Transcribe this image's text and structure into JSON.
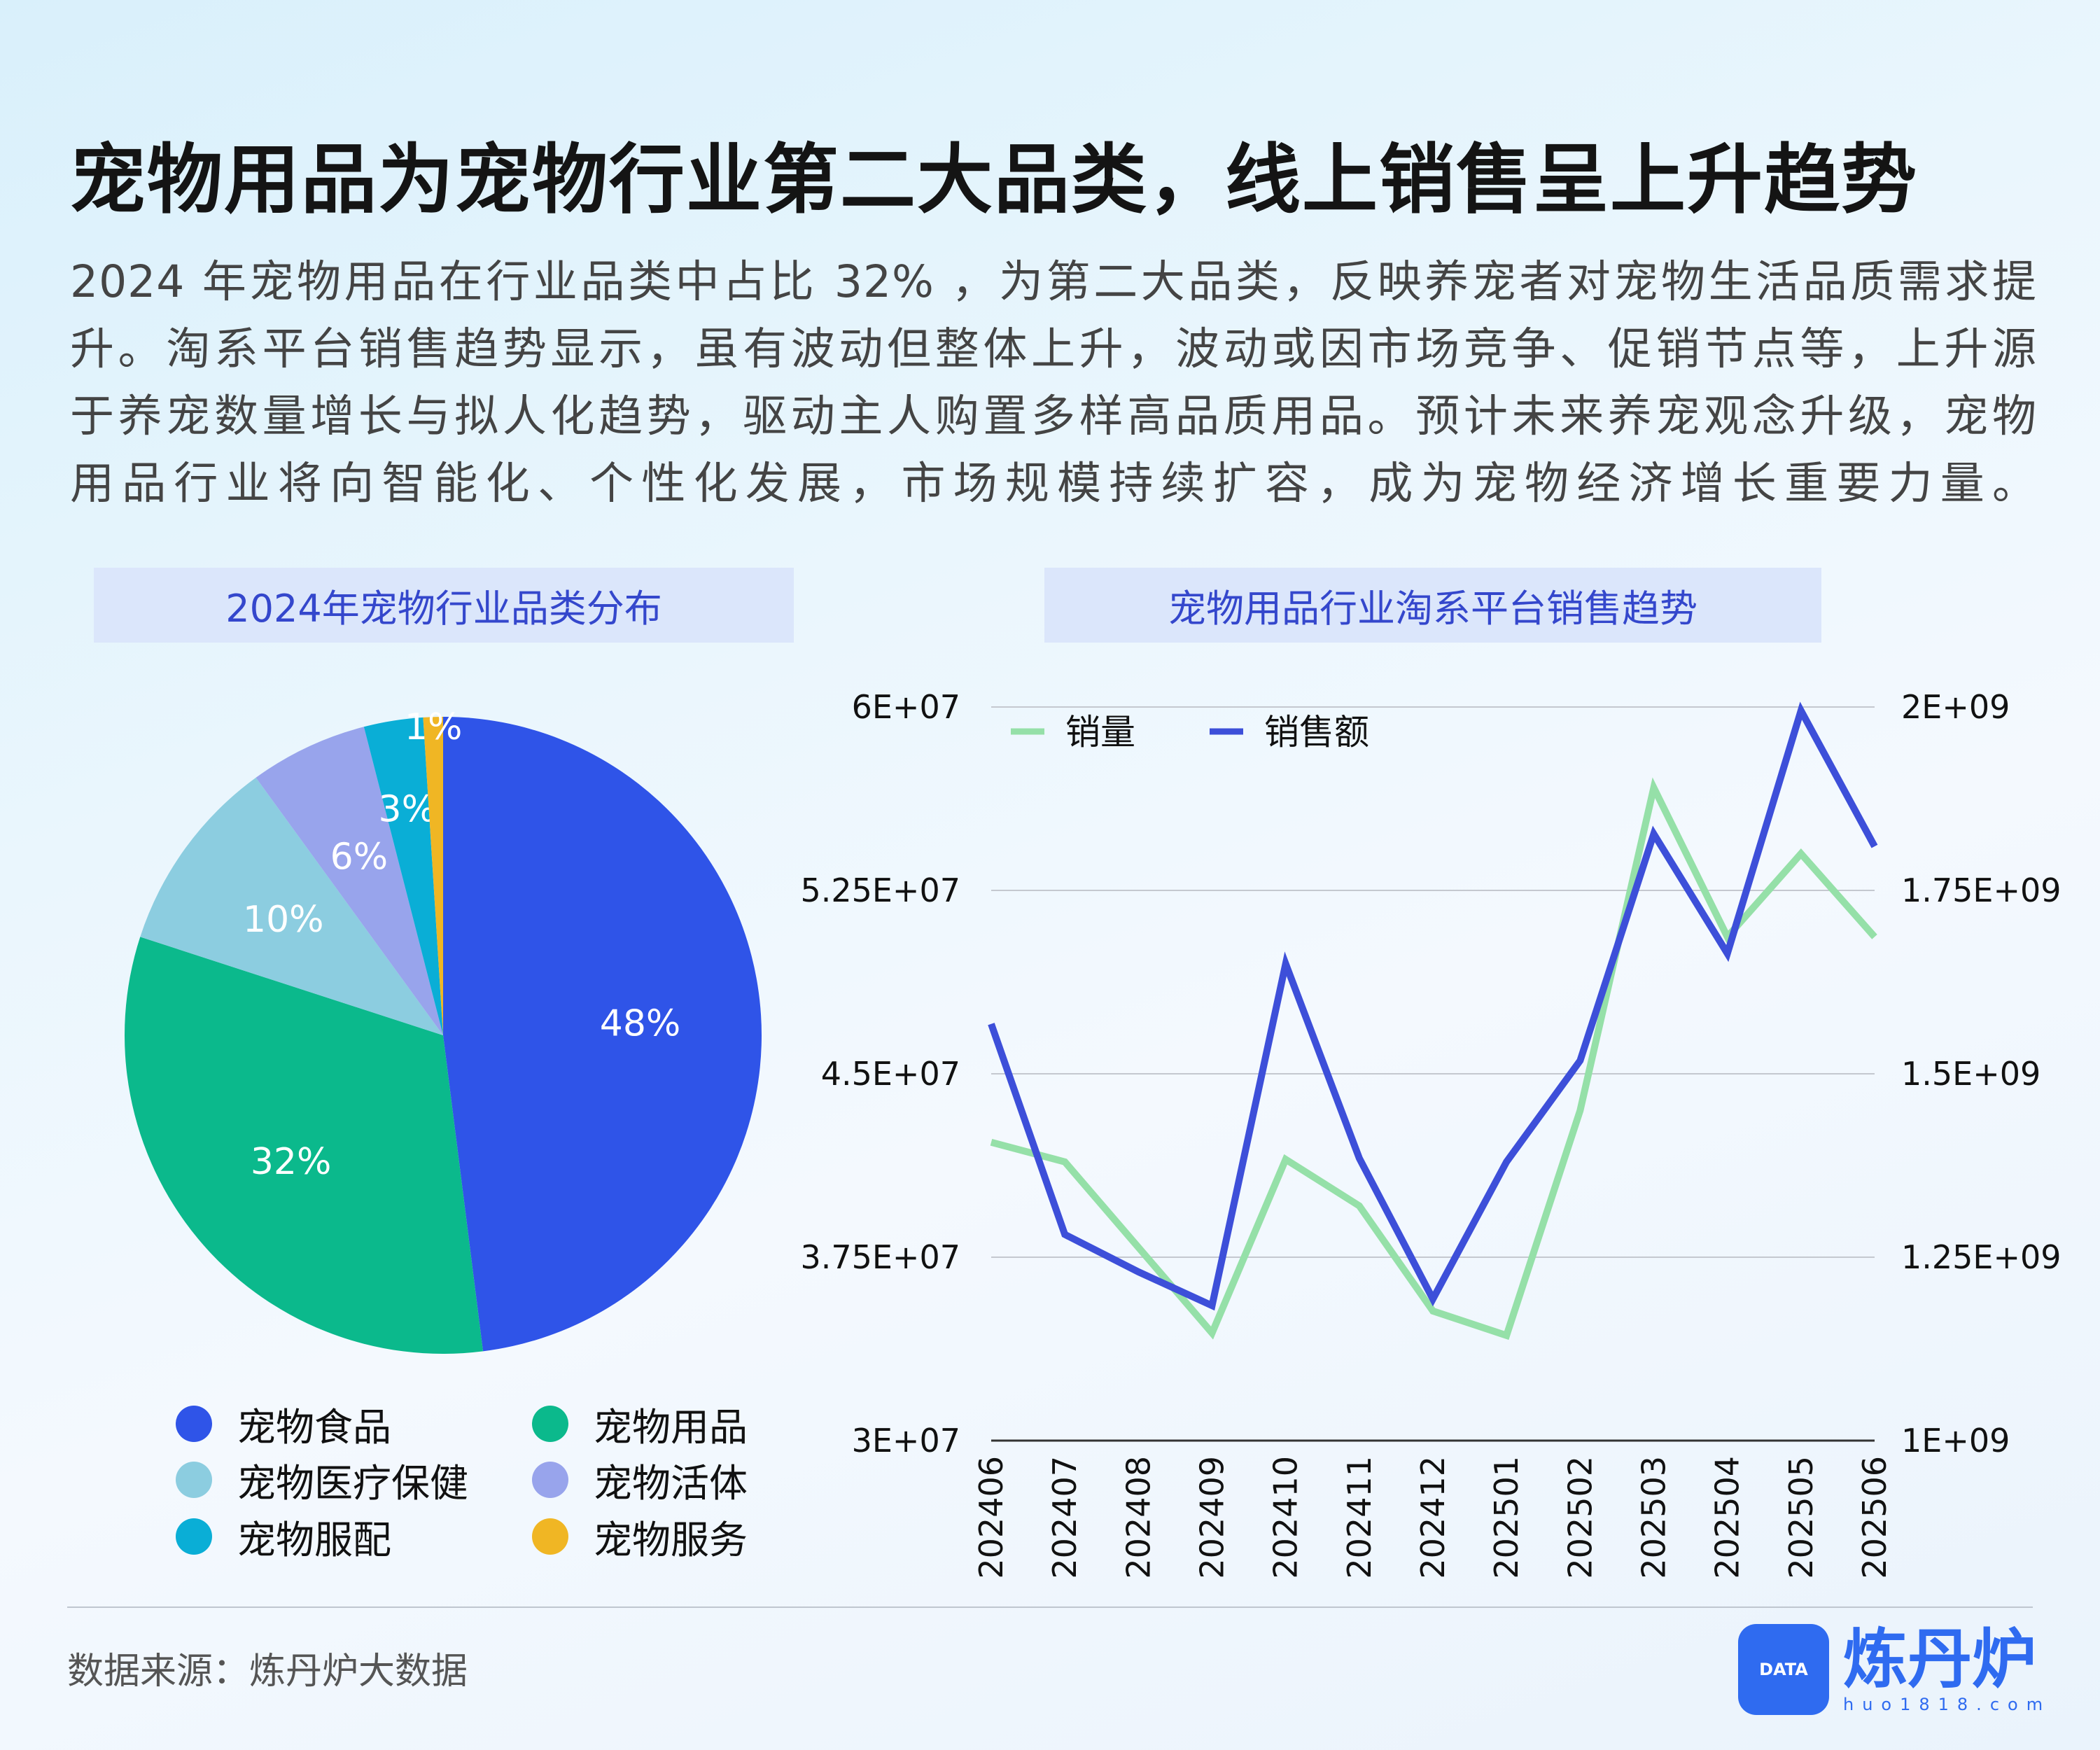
{
  "title": "宠物用品为宠物行业第二大品类，线上销售呈上升趋势",
  "paragraph_lines": [
    "2024 年宠物用品在行业品类中占比 32% ，为第二大品类，反映养宠者对宠物生活品质需求提",
    "升。淘系平台销售趋势显示，虽有波动但整体上升，波动或因市场竞争、促销节点等，上升源",
    "于养宠数量增长与拟人化趋势，驱动主人购置多样高品质用品。预计未来养宠观念升级，宠物",
    "用品行业将向智能化、个性化发展，市场规模持续扩容，成为宠物经济增长重要力量。"
  ],
  "chart_data": [
    {
      "type": "pie",
      "title": "2024年宠物行业品类分布",
      "categories": [
        "宠物食品",
        "宠物用品",
        "宠物医疗保健",
        "宠物活体",
        "宠物服配",
        "宠物服务"
      ],
      "values": [
        48,
        32,
        10,
        6,
        3,
        1
      ],
      "labels": [
        "48%",
        "32%",
        "10%",
        "6%",
        "3%",
        "1%"
      ],
      "colors": [
        "#2f54e8",
        "#0bb98c",
        "#8ccde0",
        "#98a4ec",
        "#0aaed6",
        "#f0b624"
      ],
      "legend_order": [
        0,
        1,
        2,
        3,
        4,
        5
      ],
      "legend": "bottom"
    },
    {
      "type": "line",
      "title": "宠物用品行业淘系平台销售趋势",
      "x": [
        "202406",
        "202407",
        "202408",
        "202409",
        "202410",
        "202411",
        "202412",
        "202501",
        "202502",
        "202503",
        "202504",
        "202505",
        "202506"
      ],
      "series": [
        {
          "name": "销量",
          "axis": "left",
          "color": "#95e0a8",
          "values": [
            42200000,
            41400000,
            37900000,
            34400000,
            41500000,
            39600000,
            35300000,
            34300000,
            43500000,
            56700000,
            50600000,
            54000000,
            50600000
          ]
        },
        {
          "name": "销售额",
          "axis": "right",
          "color": "#3d4fd9",
          "values": [
            1568000000,
            1281000000,
            1230000000,
            1184000000,
            1650000000,
            1385000000,
            1193000000,
            1380000000,
            1518000000,
            1827000000,
            1664000000,
            1995000000,
            1810000000
          ]
        }
      ],
      "y_left": {
        "range": [
          30000000,
          60000000
        ],
        "ticks": [
          "3E+07",
          "3.75E+07",
          "4.5E+07",
          "5.25E+07",
          "6E+07"
        ]
      },
      "y_right": {
        "range": [
          1000000000,
          2000000000
        ],
        "ticks": [
          "1E+09",
          "1.25E+09",
          "1.5E+09",
          "1.75E+09",
          "2E+09"
        ]
      },
      "grid": true,
      "legend": "top-left"
    }
  ],
  "footer": {
    "source": "数据来源：炼丹炉大数据",
    "logo_name": "炼丹炉",
    "logo_url": "huo1818.com",
    "logo_badge": "DATA"
  }
}
